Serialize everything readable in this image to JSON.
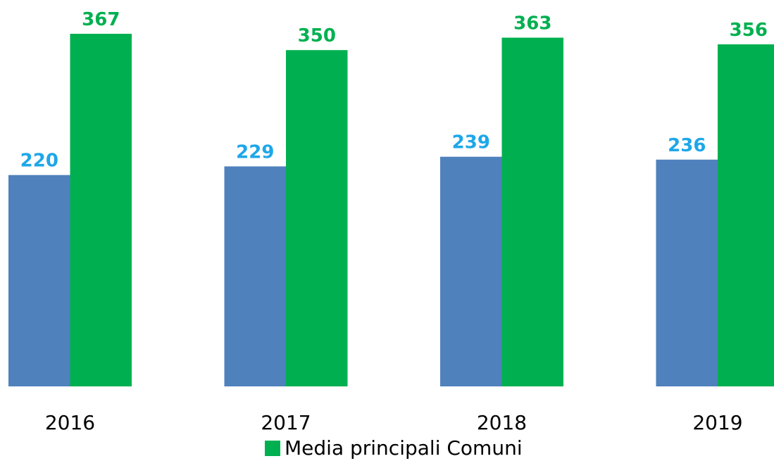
{
  "chart_data": {
    "type": "bar",
    "categories": [
      "2016",
      "2017",
      "2018",
      "2019"
    ],
    "series": [
      {
        "values": [
          220,
          229,
          239,
          236
        ],
        "color": "#4f81bd",
        "label_color": "#1ea7e9"
      },
      {
        "name": "Media principali Comuni",
        "values": [
          367,
          350,
          363,
          356
        ],
        "color": "#00b050",
        "label_color": "#00b050"
      }
    ],
    "title": "",
    "xlabel": "",
    "ylabel": "",
    "ylim": [
      0,
      367
    ],
    "grid": false,
    "legend_position": "bottom"
  }
}
